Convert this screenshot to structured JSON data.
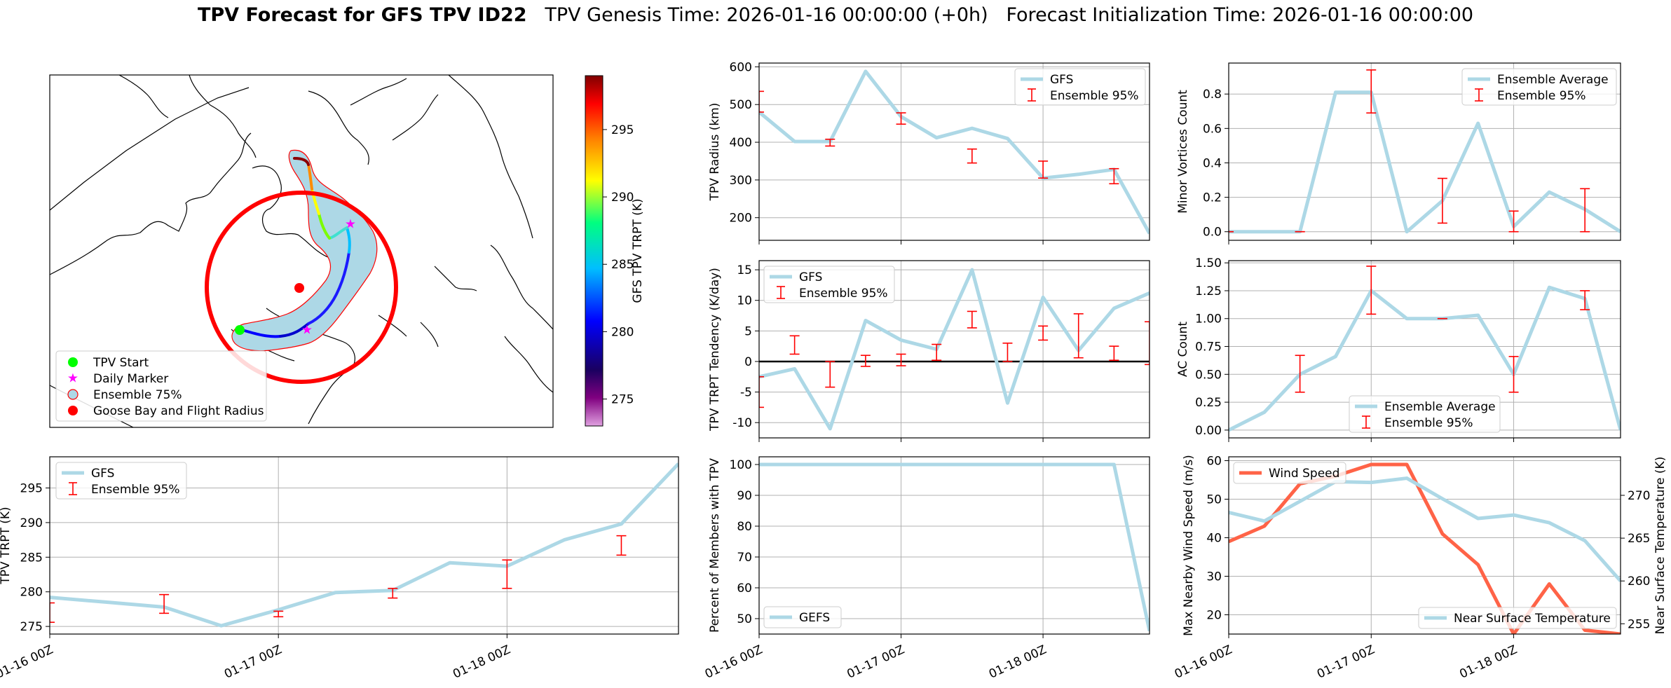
{
  "title": {
    "bold": "TPV Forecast for GFS TPV ID22",
    "genesis": "TPV Genesis Time: 2026-01-16 00:00:00 (+0h)",
    "init": "Forecast Initialization Time: 2026-01-16 00:00:00"
  },
  "colors": {
    "gfs": "#add8e6",
    "ensemble": "#ff0000",
    "wind": "#ff6347",
    "temp_axis": "#4169e1",
    "grid": "#b0b0b0"
  },
  "map": {
    "legend": [
      "TPV Start",
      "Daily Marker",
      "Ensemble 75%",
      "Goose Bay and Flight Radius"
    ],
    "colorbar": {
      "label": "GFS TPV TRPT (K)",
      "ticks": [
        275,
        280,
        285,
        290,
        295
      ],
      "range": [
        273,
        299
      ]
    }
  },
  "chart_data": [
    {
      "id": "radius",
      "type": "line",
      "x": [
        "2026-01-16 00Z",
        "2026-01-16 06Z",
        "2026-01-16 12Z",
        "2026-01-16 18Z",
        "2026-01-17 00Z",
        "2026-01-17 06Z",
        "2026-01-17 12Z",
        "2026-01-17 18Z",
        "2026-01-18 00Z",
        "2026-01-18 06Z",
        "2026-01-18 12Z",
        "2026-01-18 18Z"
      ],
      "series": [
        {
          "name": "GFS",
          "values": [
            480,
            402,
            402,
            588,
            468,
            412,
            437,
            410,
            305,
            315,
            328,
            158
          ]
        }
      ],
      "errorbars": {
        "name": "Ensemble 95%",
        "x": [
          "2026-01-16 00Z",
          "2026-01-16 12Z",
          "2026-01-17 00Z",
          "2026-01-17 12Z",
          "2026-01-18 00Z",
          "2026-01-18 12Z"
        ],
        "low": [
          480,
          390,
          448,
          345,
          305,
          290
        ],
        "high": [
          535,
          408,
          478,
          382,
          350,
          330
        ]
      },
      "ylabel": "TPV Radius (km)",
      "yticks": [
        200,
        300,
        400,
        500,
        600
      ],
      "ylim": [
        140,
        610
      ],
      "xticks": [
        "01-16 00Z",
        "01-17 00Z",
        "01-18 00Z"
      ],
      "legend": "top-right"
    },
    {
      "id": "minor",
      "type": "line",
      "x": [
        "2026-01-16 00Z",
        "2026-01-16 06Z",
        "2026-01-16 12Z",
        "2026-01-16 18Z",
        "2026-01-17 00Z",
        "2026-01-17 06Z",
        "2026-01-17 12Z",
        "2026-01-17 18Z",
        "2026-01-18 00Z",
        "2026-01-18 06Z",
        "2026-01-18 12Z",
        "2026-01-18 18Z"
      ],
      "series": [
        {
          "name": "Ensemble Average",
          "values": [
            0.0,
            0.0,
            0.0,
            0.81,
            0.81,
            0.0,
            0.18,
            0.63,
            0.03,
            0.23,
            0.13,
            0.0
          ]
        }
      ],
      "errorbars": {
        "name": "Ensemble 95%",
        "x": [
          "2026-01-16 00Z",
          "2026-01-16 12Z",
          "2026-01-17 00Z",
          "2026-01-17 12Z",
          "2026-01-18 00Z",
          "2026-01-18 12Z"
        ],
        "low": [
          0.0,
          0.0,
          0.69,
          0.05,
          0.0,
          0.0
        ],
        "high": [
          0.0,
          0.0,
          0.94,
          0.31,
          0.12,
          0.25
        ]
      },
      "ylabel": "Minor Vortices Count",
      "yticks": [
        0.0,
        0.2,
        0.4,
        0.6,
        0.8
      ],
      "ylim": [
        -0.05,
        0.98
      ],
      "xticks": [
        "01-16 00Z",
        "01-17 00Z",
        "01-18 00Z"
      ],
      "legend": "top-right"
    },
    {
      "id": "tendency",
      "type": "line",
      "x": [
        "2026-01-16 00Z",
        "2026-01-16 06Z",
        "2026-01-16 12Z",
        "2026-01-16 18Z",
        "2026-01-17 00Z",
        "2026-01-17 06Z",
        "2026-01-17 12Z",
        "2026-01-17 18Z",
        "2026-01-18 00Z",
        "2026-01-18 06Z",
        "2026-01-18 12Z",
        "2026-01-18 18Z"
      ],
      "series": [
        {
          "name": "GFS",
          "values": [
            -2.5,
            -1.2,
            -11.0,
            6.7,
            3.5,
            2.0,
            15.0,
            -6.8,
            10.5,
            1.8,
            8.7,
            11.2
          ]
        }
      ],
      "errorbars": {
        "name": "Ensemble 95%",
        "x": [
          "2026-01-16 00Z",
          "2026-01-16 06Z",
          "2026-01-16 12Z",
          "2026-01-16 18Z",
          "2026-01-17 00Z",
          "2026-01-17 06Z",
          "2026-01-17 12Z",
          "2026-01-17 18Z",
          "2026-01-18 00Z",
          "2026-01-18 06Z",
          "2026-01-18 12Z",
          "2026-01-18 18Z"
        ],
        "low": [
          -7.5,
          1.2,
          -4.2,
          -0.8,
          -0.7,
          0.2,
          5.5,
          0.0,
          3.5,
          0.6,
          0.2,
          -0.5
        ],
        "high": [
          -2.5,
          4.2,
          0.0,
          1.0,
          1.2,
          2.8,
          8.2,
          3.0,
          5.8,
          7.8,
          2.5,
          6.5
        ]
      },
      "zero_line": 0,
      "ylabel": "TPV TRPT Tendency (K/day)",
      "yticks": [
        -10,
        -5,
        0,
        5,
        10,
        15
      ],
      "ylim": [
        -12.5,
        16.5
      ],
      "xticks": [
        "01-16 00Z",
        "01-17 00Z",
        "01-18 00Z"
      ],
      "legend": "top-left"
    },
    {
      "id": "ac",
      "type": "line",
      "x": [
        "2026-01-16 00Z",
        "2026-01-16 06Z",
        "2026-01-16 12Z",
        "2026-01-16 18Z",
        "2026-01-17 00Z",
        "2026-01-17 06Z",
        "2026-01-17 12Z",
        "2026-01-17 18Z",
        "2026-01-18 00Z",
        "2026-01-18 06Z",
        "2026-01-18 12Z",
        "2026-01-18 18Z"
      ],
      "series": [
        {
          "name": "Ensemble Average",
          "values": [
            0.0,
            0.16,
            0.5,
            0.66,
            1.25,
            1.0,
            1.0,
            1.03,
            0.5,
            1.28,
            1.18,
            0.0
          ]
        }
      ],
      "errorbars": {
        "name": "Ensemble 95%",
        "x": [
          "2026-01-16 12Z",
          "2026-01-17 00Z",
          "2026-01-17 12Z",
          "2026-01-18 00Z",
          "2026-01-18 12Z"
        ],
        "low": [
          0.34,
          1.04,
          1.0,
          0.34,
          1.08
        ],
        "high": [
          0.67,
          1.47,
          1.0,
          0.66,
          1.25
        ]
      },
      "ylabel": "AC Count",
      "yticks": [
        0.0,
        0.25,
        0.5,
        0.75,
        1.0,
        1.25,
        1.5
      ],
      "ylim": [
        -0.07,
        1.52
      ],
      "xticks": [
        "01-16 00Z",
        "01-17 00Z",
        "01-18 00Z"
      ],
      "legend": "bottom-center"
    },
    {
      "id": "trpt",
      "type": "line",
      "x": [
        "2026-01-16 00Z",
        "2026-01-16 06Z",
        "2026-01-16 12Z",
        "2026-01-16 18Z",
        "2026-01-17 00Z",
        "2026-01-17 06Z",
        "2026-01-17 12Z",
        "2026-01-17 18Z",
        "2026-01-18 00Z",
        "2026-01-18 06Z",
        "2026-01-18 12Z",
        "2026-01-18 18Z"
      ],
      "series": [
        {
          "name": "GFS",
          "values": [
            279.2,
            278.5,
            277.8,
            275.1,
            277.4,
            279.9,
            280.2,
            284.2,
            283.7,
            287.5,
            289.8,
            298.5
          ]
        }
      ],
      "errorbars": {
        "name": "Ensemble 95%",
        "x": [
          "2026-01-16 00Z",
          "2026-01-16 12Z",
          "2026-01-17 00Z",
          "2026-01-17 12Z",
          "2026-01-18 00Z",
          "2026-01-18 12Z"
        ],
        "low": [
          275.6,
          276.9,
          276.4,
          279.1,
          280.5,
          285.3
        ],
        "high": [
          278.4,
          279.6,
          277.2,
          280.5,
          284.6,
          288.1
        ]
      },
      "ylabel": "TPV TRPT (K)",
      "yticks": [
        275,
        280,
        285,
        290,
        295
      ],
      "ylim": [
        273.9,
        299.5
      ],
      "xticks": [
        "01-16 00Z",
        "01-17 00Z",
        "01-18 00Z"
      ],
      "legend": "top-left"
    },
    {
      "id": "percent",
      "type": "line",
      "x": [
        "2026-01-16 00Z",
        "2026-01-16 06Z",
        "2026-01-16 12Z",
        "2026-01-16 18Z",
        "2026-01-17 00Z",
        "2026-01-17 06Z",
        "2026-01-17 12Z",
        "2026-01-17 18Z",
        "2026-01-18 00Z",
        "2026-01-18 06Z",
        "2026-01-18 12Z",
        "2026-01-18 18Z"
      ],
      "series": [
        {
          "name": "GEFS",
          "values": [
            100,
            100,
            100,
            100,
            100,
            100,
            100,
            100,
            100,
            100,
            100,
            46
          ]
        }
      ],
      "ylabel": "Percent of Members with TPV",
      "yticks": [
        50,
        60,
        70,
        80,
        90,
        100
      ],
      "ylim": [
        45,
        102.5
      ],
      "xticks": [
        "01-16 00Z",
        "01-17 00Z",
        "01-18 00Z"
      ],
      "legend": "bottom-left"
    },
    {
      "id": "wind",
      "type": "line",
      "x": [
        "2026-01-16 00Z",
        "2026-01-16 06Z",
        "2026-01-16 12Z",
        "2026-01-16 18Z",
        "2026-01-17 00Z",
        "2026-01-17 06Z",
        "2026-01-17 12Z",
        "2026-01-17 18Z",
        "2026-01-18 00Z",
        "2026-01-18 06Z",
        "2026-01-18 12Z",
        "2026-01-18 18Z"
      ],
      "series": [
        {
          "name": "Wind Speed",
          "axis": "left",
          "values": [
            39,
            43,
            54,
            56,
            59,
            59,
            41,
            33,
            15,
            28,
            16,
            15
          ]
        },
        {
          "name": "Near Surface Temperature",
          "axis": "right",
          "values": [
            268.0,
            267.0,
            269.3,
            271.6,
            271.5,
            272.0,
            269.6,
            267.3,
            267.7,
            266.8,
            264.7,
            260.0
          ]
        }
      ],
      "ylabel": "Max Nearby Wind Speed (m/s)",
      "ylabel_right": "Near Surface Temperature (K)",
      "yticks": [
        20,
        30,
        40,
        50,
        60
      ],
      "ylim": [
        15,
        61
      ],
      "yticks_right": [
        255,
        260,
        265,
        270
      ],
      "ylim_right": [
        253.8,
        274.5
      ],
      "xticks": [
        "01-16 00Z",
        "01-17 00Z",
        "01-18 00Z"
      ],
      "legend": "top-left / bottom-right"
    }
  ]
}
